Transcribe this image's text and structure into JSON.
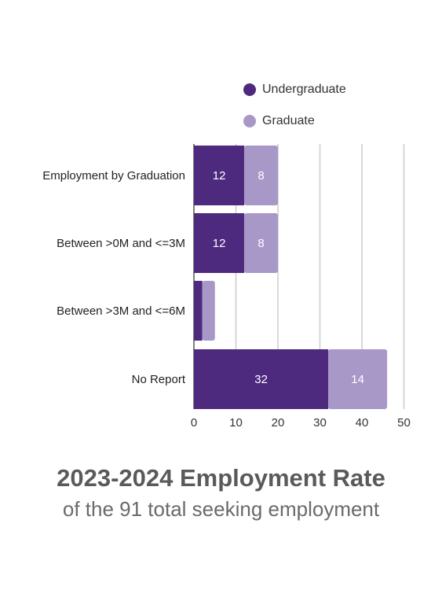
{
  "chart_data": {
    "type": "bar",
    "orientation": "horizontal",
    "stacked": true,
    "categories": [
      "Employment by Graduation",
      "Between >0M and <=3M",
      "Between >3M and <=6M",
      "No Report"
    ],
    "series": [
      {
        "name": "Undergraduate",
        "values": [
          12,
          12,
          2,
          32
        ],
        "color": "#4e2a7f",
        "labels": [
          "12",
          "12",
          "",
          "32"
        ]
      },
      {
        "name": "Graduate",
        "values": [
          8,
          8,
          3,
          14
        ],
        "color": "#a898c8",
        "labels": [
          "8",
          "8",
          "",
          "14"
        ]
      }
    ],
    "x_ticks": [
      "0",
      "10",
      "20",
      "30",
      "40",
      "50"
    ],
    "xlim": [
      0,
      50
    ],
    "grid": true,
    "legend_position": "top"
  },
  "title": "2023-2024 Employment Rate",
  "subtitle": "of the 91 total seeking employment"
}
